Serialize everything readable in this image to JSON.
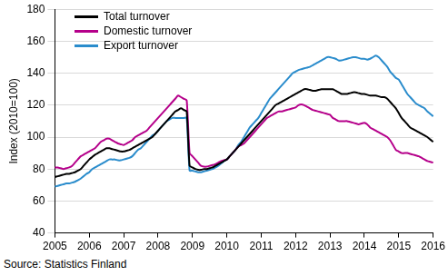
{
  "chart_data": {
    "type": "line",
    "y_label": "Index (2010=100)",
    "source": "Source: Statistics Finland",
    "legend": "upper left",
    "grid": true,
    "ylim": [
      40,
      180
    ],
    "yticks": [
      40,
      60,
      80,
      100,
      120,
      140,
      160,
      180
    ],
    "categories": [
      "2005",
      null,
      null,
      null,
      null,
      null,
      null,
      null,
      null,
      null,
      null,
      null,
      "2006",
      null,
      null,
      null,
      null,
      null,
      null,
      null,
      null,
      null,
      null,
      null,
      "2007",
      null,
      null,
      null,
      null,
      null,
      null,
      null,
      null,
      null,
      null,
      null,
      "2008",
      null,
      null,
      null,
      null,
      null,
      null,
      null,
      null,
      null,
      null,
      null,
      "2009",
      null,
      null,
      null,
      null,
      null,
      null,
      null,
      null,
      null,
      null,
      null,
      "2010",
      null,
      null,
      null,
      null,
      null,
      null,
      null,
      null,
      null,
      null,
      null,
      "2011",
      null,
      null,
      null,
      null,
      null,
      null,
      null,
      null,
      null,
      null,
      null,
      "2012",
      null,
      null,
      null,
      null,
      null,
      null,
      null,
      null,
      null,
      null,
      null,
      "2013",
      null,
      null,
      null,
      null,
      null,
      null,
      null,
      null,
      null,
      null,
      null,
      "2014",
      null,
      null,
      null,
      null,
      null,
      null,
      null,
      null,
      null,
      null,
      null,
      "2015",
      null,
      null,
      null,
      null,
      null,
      null,
      null,
      null,
      null,
      null,
      null,
      "2016"
    ],
    "series": [
      {
        "name": "Total turnover",
        "color": "#000000",
        "values": [
          75,
          75.5,
          76,
          76.5,
          77,
          77,
          77.5,
          78,
          79,
          80,
          82,
          84,
          86,
          87.5,
          89,
          90,
          91,
          92,
          93,
          93,
          92.5,
          92,
          91.5,
          91,
          91,
          91.5,
          92,
          93,
          94,
          95,
          96,
          97,
          98,
          99,
          100,
          102,
          104,
          106,
          108,
          110,
          112,
          114,
          116,
          117,
          118,
          117,
          116,
          82,
          81,
          80,
          79.5,
          79.5,
          80,
          80,
          80.5,
          81,
          82,
          83,
          84,
          85,
          86,
          88,
          90,
          92,
          94,
          96,
          98,
          100,
          102,
          104,
          106,
          108,
          110,
          112,
          114,
          116,
          118,
          120,
          121,
          122,
          123,
          124,
          125,
          126,
          127,
          128,
          129,
          130,
          130,
          129.5,
          129,
          129,
          129.5,
          130,
          130,
          130,
          130,
          130,
          129,
          128,
          127,
          127,
          127,
          127.5,
          128,
          128,
          127.5,
          127,
          127,
          126.5,
          126,
          126,
          126,
          125.5,
          125,
          125,
          124,
          122,
          120,
          118,
          115,
          112,
          110,
          108,
          106,
          105,
          104,
          103,
          102,
          101,
          100,
          98.5,
          97
        ]
      },
      {
        "name": "Domestic turnover",
        "color": "#b5008a",
        "values": [
          81,
          81,
          80.5,
          80,
          80.5,
          81,
          82,
          84,
          86,
          88,
          89,
          90,
          91,
          92,
          93,
          95,
          97,
          98,
          99,
          99,
          98,
          97,
          96,
          95.5,
          95,
          96,
          97,
          98,
          100,
          101,
          102,
          103,
          104,
          106,
          108,
          110,
          112,
          114,
          116,
          118,
          120,
          122,
          124,
          126,
          125,
          124,
          123,
          90,
          88,
          86,
          84,
          82,
          81.5,
          81.5,
          82,
          82.5,
          83,
          84,
          85,
          85.5,
          86,
          88,
          90,
          92,
          94,
          95,
          96,
          98,
          100,
          102,
          104,
          106,
          108,
          110,
          112,
          113,
          114,
          115,
          116,
          116,
          116.5,
          117,
          117.5,
          118,
          118.5,
          120,
          120.5,
          120,
          119,
          118,
          117,
          116.5,
          116,
          115.5,
          115,
          114.5,
          114,
          112,
          111,
          110,
          110,
          110,
          110,
          109.5,
          109,
          108.5,
          108,
          108.5,
          109,
          108,
          106,
          105,
          104,
          103,
          102,
          101,
          100,
          98,
          95,
          92,
          91,
          90,
          90,
          90,
          89.5,
          89,
          88.5,
          88,
          87,
          86,
          85,
          84.5,
          84
        ]
      },
      {
        "name": "Export turnover",
        "color": "#2a8ccc",
        "values": [
          69,
          69.5,
          70,
          70.5,
          71,
          71,
          71.5,
          72,
          73,
          74,
          75.5,
          77,
          78,
          80,
          81,
          82,
          83,
          84,
          85,
          86,
          86,
          86,
          85.5,
          85.5,
          86,
          86.5,
          87,
          88,
          90,
          92,
          93,
          95,
          97,
          99,
          101,
          102,
          104,
          106,
          108,
          110,
          111,
          112,
          112,
          112,
          112,
          112,
          112,
          79,
          79,
          78.5,
          78,
          78,
          78.5,
          79,
          79.5,
          80,
          81,
          82,
          83.5,
          85,
          86,
          88,
          90,
          92,
          95,
          97,
          100,
          103,
          106,
          108,
          110,
          112,
          115,
          118,
          121,
          124,
          126,
          128,
          130,
          132,
          134,
          136,
          138,
          140,
          141,
          142,
          142.5,
          143,
          143.5,
          144,
          145,
          146,
          147,
          148,
          149,
          150,
          150,
          149.5,
          149,
          148,
          148,
          148.5,
          149,
          149.5,
          150,
          150,
          149.5,
          149,
          149,
          148.5,
          149,
          150,
          151,
          150,
          148,
          146,
          144,
          141,
          139,
          137,
          136,
          133,
          130,
          127,
          125,
          123,
          121,
          120,
          119,
          118,
          116,
          114.5,
          113
        ]
      }
    ]
  }
}
